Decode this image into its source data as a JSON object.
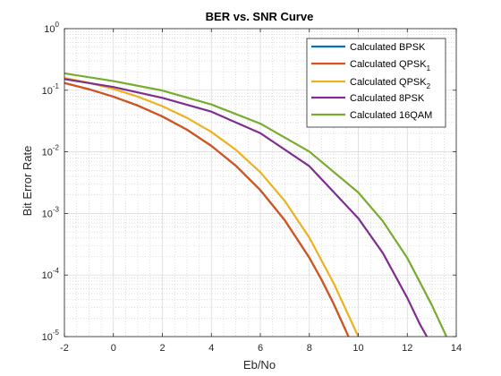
{
  "chart_data": {
    "type": "line",
    "title": "BER vs. SNR Curve",
    "xlabel": "Eb/No",
    "ylabel": "Bit Error Rate",
    "xlim": [
      -2,
      14
    ],
    "ylim": [
      1e-05,
      1
    ],
    "yscale": "log",
    "grid": true,
    "minor_grid": true,
    "legend_position": "top-right",
    "x_ticks": [
      "-2",
      "0",
      "2",
      "4",
      "6",
      "8",
      "10",
      "12",
      "14"
    ],
    "y_ticks": [
      {
        "base": "10",
        "exp": "0"
      },
      {
        "base": "10",
        "exp": "-1"
      },
      {
        "base": "10",
        "exp": "-2"
      },
      {
        "base": "10",
        "exp": "-3"
      },
      {
        "base": "10",
        "exp": "-4"
      },
      {
        "base": "10",
        "exp": "-5"
      }
    ],
    "series": [
      {
        "name": "Calculated BPSK",
        "name_main": "Calculated BPSK",
        "name_sub": "",
        "color": "#0072BD",
        "x": [
          -2,
          -1,
          0,
          1,
          2,
          3,
          4,
          5,
          6,
          7,
          8,
          8.5,
          9,
          9.5
        ],
        "y": [
          0.131,
          0.104,
          0.0786,
          0.0563,
          0.0375,
          0.0229,
          0.0125,
          0.00595,
          0.00239,
          0.000773,
          0.000191,
          8.37e-05,
          3.36e-05,
          1.23e-05
        ]
      },
      {
        "name": "Calculated QPSK1",
        "name_main": "Calculated QPSK",
        "name_sub": "1",
        "color": "#D95319",
        "x": [
          -2,
          -1,
          0,
          1,
          2,
          3,
          4,
          5,
          6,
          7,
          8,
          8.5,
          9,
          9.6
        ],
        "y": [
          0.131,
          0.104,
          0.0786,
          0.0563,
          0.0375,
          0.0229,
          0.0125,
          0.00595,
          0.00239,
          0.000773,
          0.000191,
          8.37e-05,
          3.36e-05,
          1e-05
        ]
      },
      {
        "name": "Calculated QPSK2",
        "name_main": "Calculated QPSK",
        "name_sub": "2",
        "color": "#EDB120",
        "x": [
          -2,
          -1,
          0,
          1,
          2,
          3,
          4,
          5,
          6,
          7,
          8,
          9,
          10
        ],
        "y": [
          0.158,
          0.132,
          0.105,
          0.0786,
          0.0551,
          0.0357,
          0.021,
          0.0108,
          0.00466,
          0.00159,
          0.000405,
          7.26e-05,
          1e-05
        ]
      },
      {
        "name": "Calculated 8PSK",
        "name_main": "Calculated 8PSK",
        "name_sub": "",
        "color": "#7E2F8E",
        "x": [
          -2,
          0,
          2,
          4,
          6,
          8,
          10,
          11,
          12,
          12.5,
          12.8
        ],
        "y": [
          0.152,
          0.113,
          0.0751,
          0.0449,
          0.0201,
          0.00586,
          0.000834,
          0.000228,
          4.26e-05,
          1.63e-05,
          1e-05
        ]
      },
      {
        "name": "Calculated 16QAM",
        "name_main": "Calculated 16QAM",
        "name_sub": "",
        "color": "#77AC30",
        "x": [
          -2,
          0,
          2,
          4,
          6,
          8,
          10,
          11,
          12,
          13,
          13.6
        ],
        "y": [
          0.188,
          0.141,
          0.0989,
          0.0588,
          0.0287,
          0.0101,
          0.00219,
          0.000751,
          0.000189,
          3.26e-05,
          1e-05
        ]
      }
    ]
  }
}
